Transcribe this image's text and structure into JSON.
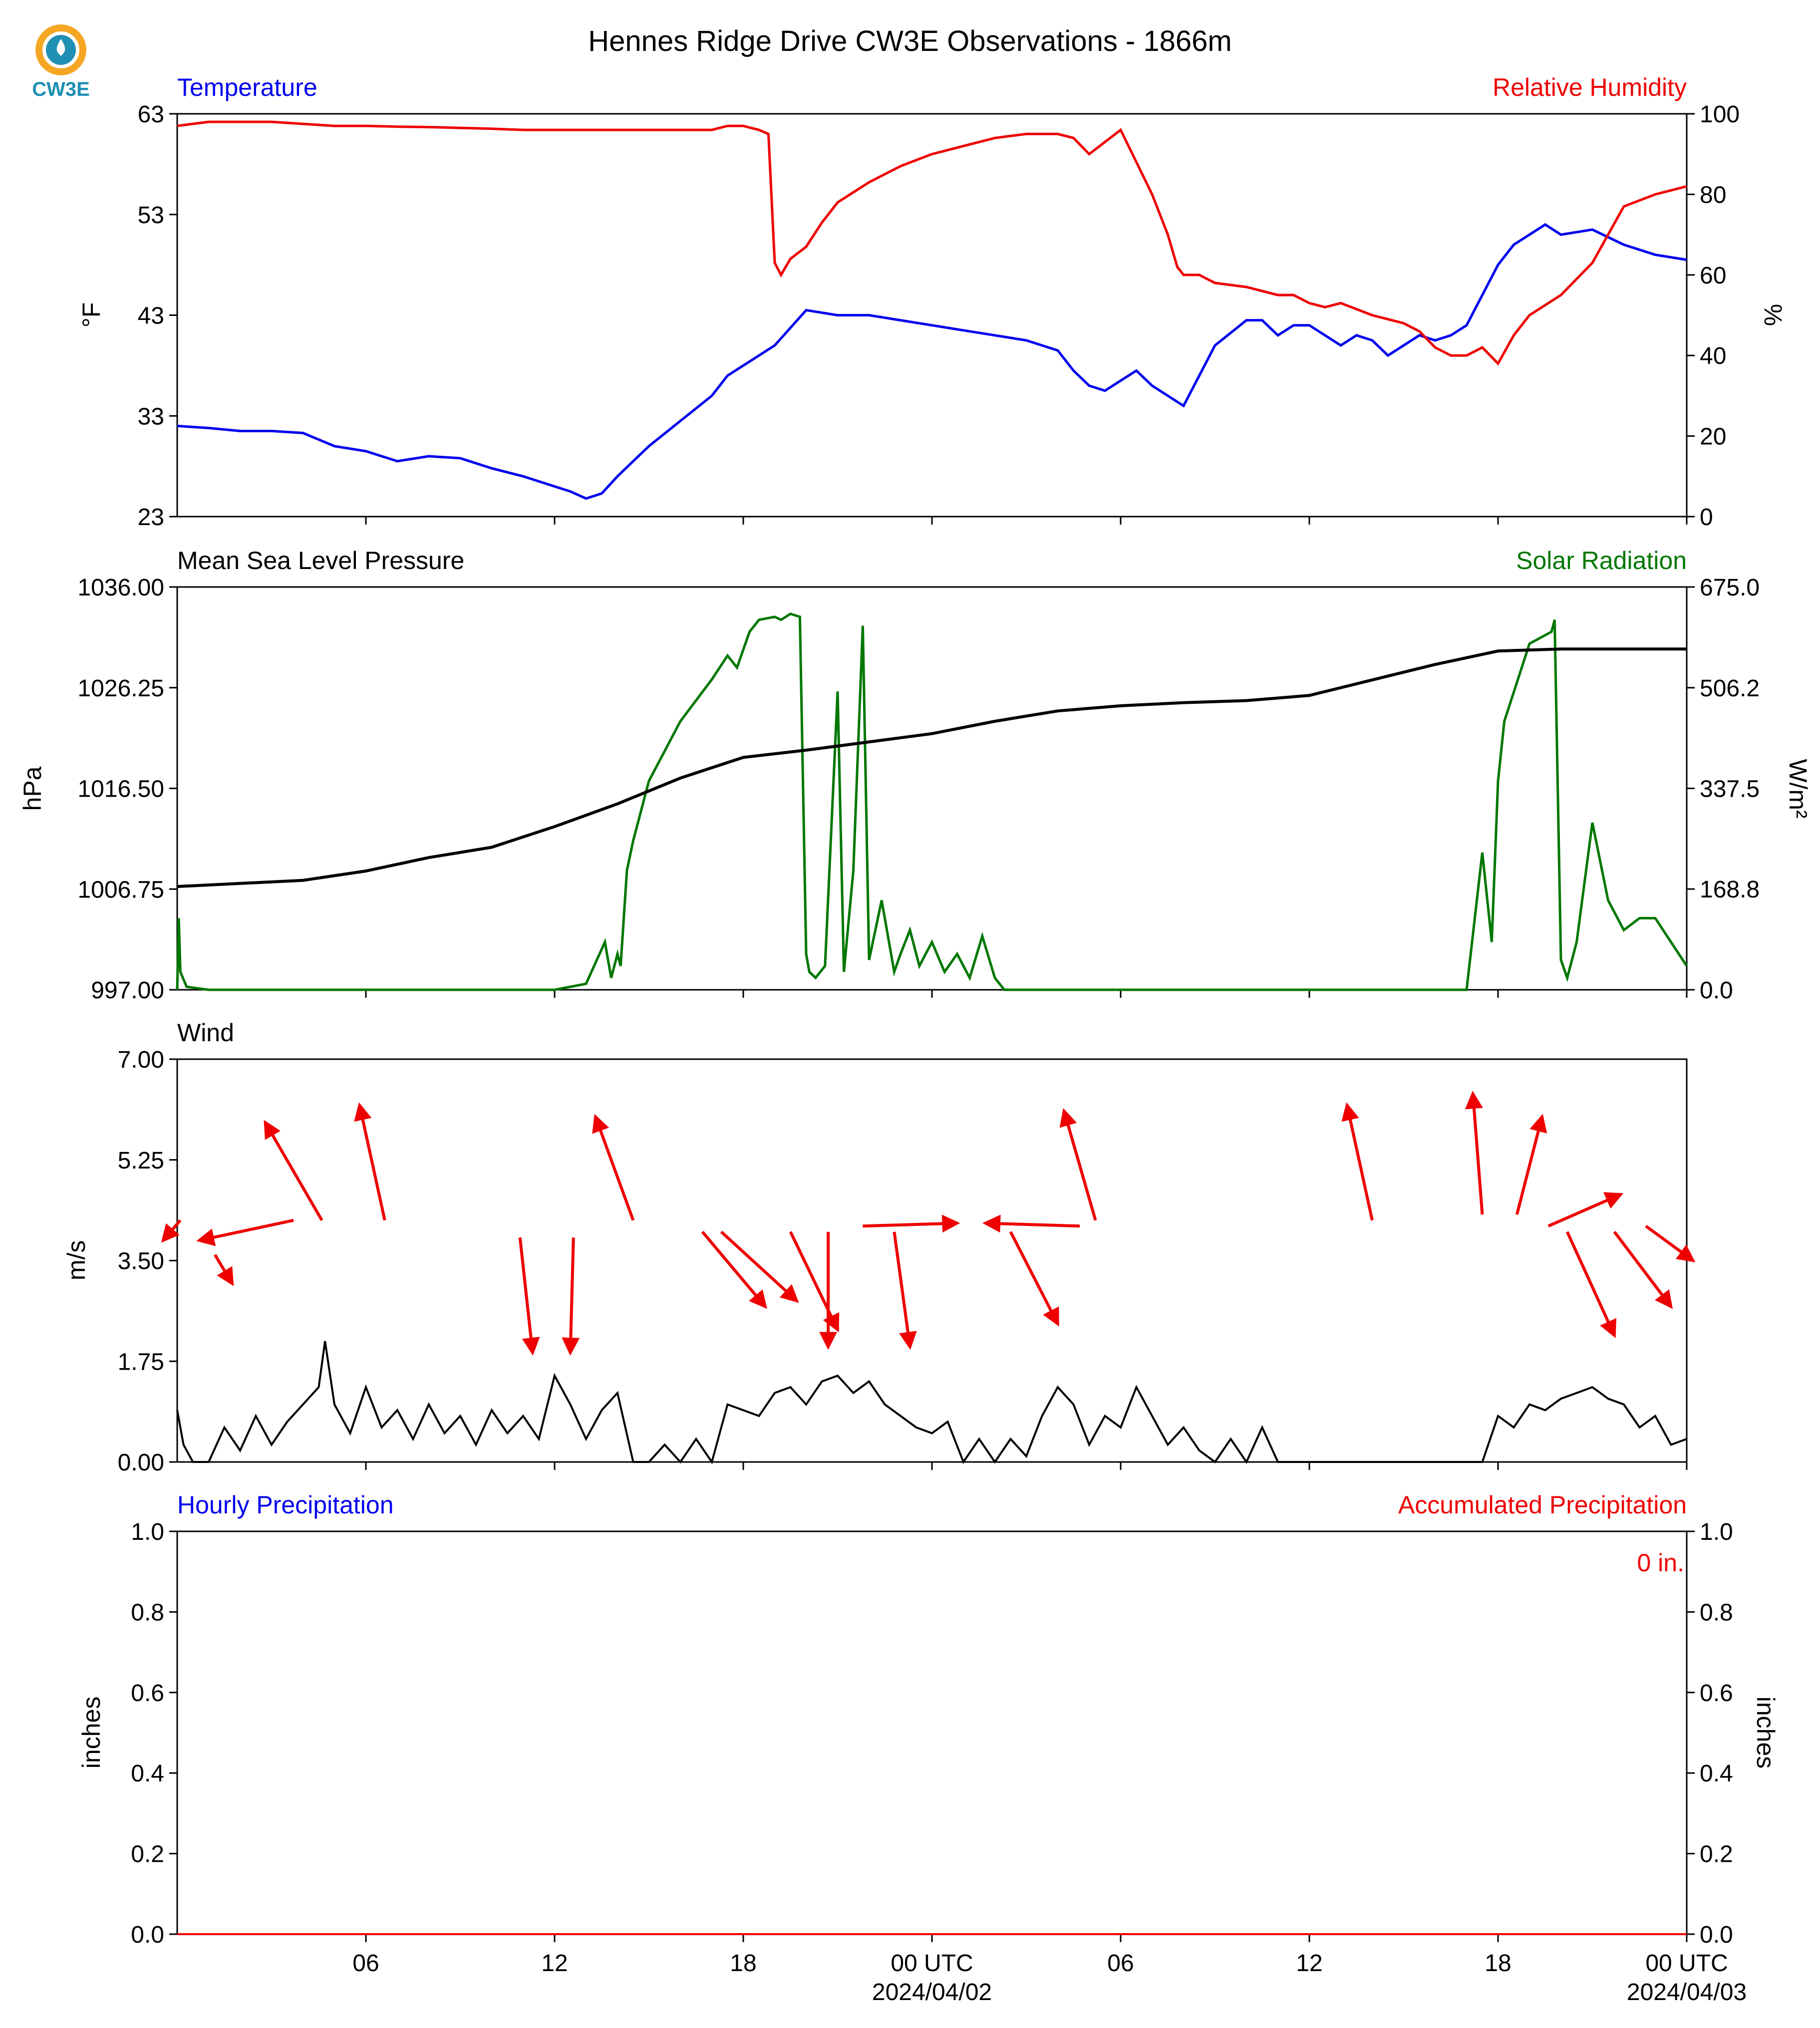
{
  "figure": {
    "title": "Hennes Ridge Drive CW3E Observations - 1866m",
    "logo_text": "CW3E",
    "x_axis": {
      "range_hours": [
        0,
        48
      ],
      "tick_hours": [
        6,
        12,
        18,
        24,
        30,
        36,
        42,
        48
      ],
      "tick_labels": [
        "06",
        "12",
        "18",
        "00 UTC",
        "06",
        "12",
        "18",
        "00 UTC"
      ],
      "date_labels": [
        {
          "hour": 24,
          "text": "2024/04/02"
        },
        {
          "hour": 48,
          "text": "2024/04/03"
        }
      ]
    }
  },
  "chart_data": [
    {
      "type": "line",
      "panel": "temperature-humidity",
      "left_title": "Temperature",
      "right_title": "Relative Humidity",
      "ylabel_left": "°F",
      "ylabel_right": "%",
      "ylim_left": [
        23,
        63
      ],
      "ylim_right": [
        0,
        100
      ],
      "yticks_left": [
        23,
        33,
        43,
        53,
        63
      ],
      "yticks_right": [
        0,
        20,
        40,
        60,
        80,
        100
      ],
      "series": [
        {
          "name": "Temperature",
          "axis": "left",
          "color": "#0000ee",
          "x": [
            0,
            1,
            2,
            3,
            4,
            5,
            6,
            7,
            8,
            9,
            10,
            11,
            11.5,
            12,
            12.5,
            13,
            13.5,
            14,
            14.5,
            15,
            16,
            17,
            17.5,
            18,
            19,
            20,
            21,
            22,
            23,
            24,
            25,
            26,
            27,
            28,
            28.5,
            29,
            29.5,
            30,
            30.5,
            31,
            31.5,
            32,
            33,
            34,
            34.5,
            35,
            35.5,
            36,
            37,
            37.5,
            38,
            38.5,
            39,
            39.5,
            40,
            40.5,
            41,
            42,
            42.5,
            43,
            43.5,
            44,
            45,
            46,
            47,
            48
          ],
          "y": [
            32,
            31.8,
            31.5,
            31.5,
            31.3,
            30,
            29.5,
            28.5,
            29,
            28.8,
            27.8,
            27,
            26.5,
            26,
            25.5,
            24.8,
            25.3,
            27,
            28.5,
            30,
            32.5,
            35,
            37,
            38,
            40,
            43.5,
            43,
            43,
            42.5,
            42,
            41.5,
            41,
            40.5,
            39.5,
            37.5,
            36,
            35.5,
            36.5,
            37.5,
            36,
            35,
            34,
            40,
            42.5,
            42.5,
            41,
            42,
            42,
            40,
            41,
            40.5,
            39,
            40,
            41,
            40.5,
            41,
            42,
            48,
            50,
            51,
            52,
            51,
            51.5,
            50,
            49,
            48.5
          ]
        },
        {
          "name": "Relative Humidity",
          "axis": "right",
          "color": "#ee0000",
          "x": [
            0,
            1,
            2,
            3,
            4,
            5,
            6,
            7,
            8,
            9,
            10,
            11,
            12,
            13,
            14,
            15,
            16,
            17,
            17.5,
            18,
            18.5,
            18.8,
            19,
            19.2,
            19.5,
            20,
            20.5,
            21,
            22,
            23,
            24,
            25,
            26,
            27,
            28,
            28.5,
            29,
            29.5,
            30,
            30.5,
            31,
            31.5,
            31.8,
            32,
            32.5,
            33,
            34,
            35,
            35.5,
            36,
            36.5,
            37,
            38,
            39,
            39.5,
            40,
            40.5,
            41,
            41.5,
            42,
            42.5,
            43,
            44,
            45,
            46,
            47,
            48
          ],
          "y": [
            97,
            98,
            98,
            98,
            97.5,
            97,
            97,
            96.8,
            96.7,
            96.5,
            96.3,
            96,
            96,
            96,
            96,
            96,
            96,
            96,
            97,
            97,
            96,
            95,
            63,
            60,
            64,
            67,
            73,
            78,
            83,
            87,
            90,
            92,
            94,
            95,
            95,
            94,
            90,
            93,
            96,
            88,
            80,
            70,
            62,
            60,
            60,
            58,
            57,
            55,
            55,
            53,
            52,
            53,
            50,
            48,
            46,
            42,
            40,
            40,
            42,
            38,
            45,
            50,
            55,
            63,
            77,
            80,
            82
          ]
        }
      ]
    },
    {
      "type": "line",
      "panel": "pressure-solar",
      "left_title": "Mean Sea Level Pressure",
      "right_title": "Solar Radiation",
      "ylabel_left": "hPa",
      "ylabel_right": "W/m²",
      "ylim_left": [
        997.0,
        1036.0
      ],
      "ylim_right": [
        0.0,
        675.0
      ],
      "yticks_left": [
        "997.00",
        "1006.75",
        "1016.50",
        "1026.25",
        "1036.00"
      ],
      "yticks_left_values": [
        997.0,
        1006.75,
        1016.5,
        1026.25,
        1036.0
      ],
      "yticks_right": [
        "0.0",
        "168.8",
        "337.5",
        "506.2",
        "675.0"
      ],
      "yticks_right_values": [
        0.0,
        168.8,
        337.5,
        506.2,
        675.0
      ],
      "series": [
        {
          "name": "Mean Sea Level Pressure",
          "axis": "left",
          "color": "#000000",
          "x": [
            0,
            2,
            4,
            6,
            8,
            10,
            12,
            14,
            16,
            18,
            20,
            22,
            24,
            26,
            28,
            30,
            32,
            34,
            36,
            38,
            40,
            42,
            44,
            46,
            48
          ],
          "y": [
            1007.0,
            1007.3,
            1007.6,
            1008.5,
            1009.8,
            1010.8,
            1012.8,
            1015.0,
            1017.5,
            1019.5,
            1020.2,
            1021.0,
            1021.8,
            1023.0,
            1024.0,
            1024.5,
            1024.8,
            1025.0,
            1025.5,
            1027.0,
            1028.5,
            1029.8,
            1030.0,
            1030.0,
            1030.0
          ]
        },
        {
          "name": "Solar Radiation",
          "axis": "right",
          "color": "#007700",
          "x": [
            0,
            0.05,
            0.1,
            0.3,
            1,
            12,
            13,
            13.6,
            13.8,
            14,
            14.1,
            14.3,
            14.5,
            15,
            16,
            17,
            17.5,
            17.8,
            18.2,
            18.5,
            19,
            19.2,
            19.5,
            19.8,
            20,
            20.1,
            20.3,
            20.6,
            21,
            21.2,
            21.5,
            21.8,
            22,
            22.4,
            22.8,
            23,
            23.3,
            23.6,
            24,
            24.4,
            24.8,
            25.2,
            25.6,
            26,
            26.3,
            40,
            41,
            41.5,
            41.8,
            42,
            42.2,
            43,
            43.7,
            43.8,
            44,
            44.2,
            44.5,
            45,
            45.5,
            46,
            46.5,
            47,
            47.5,
            48
          ],
          "y": [
            0,
            120,
            30,
            5,
            0,
            0,
            10,
            80,
            20,
            60,
            40,
            200,
            250,
            350,
            450,
            520,
            560,
            540,
            600,
            620,
            625,
            620,
            630,
            625,
            60,
            30,
            20,
            40,
            500,
            30,
            200,
            610,
            50,
            150,
            30,
            60,
            100,
            40,
            80,
            30,
            60,
            20,
            90,
            20,
            0,
            0,
            0,
            230,
            80,
            350,
            450,
            580,
            600,
            620,
            50,
            20,
            80,
            280,
            150,
            100,
            120,
            120,
            80,
            40
          ]
        }
      ]
    },
    {
      "type": "line",
      "panel": "wind",
      "left_title": "Wind",
      "ylabel_left": "m/s",
      "ylim_left": [
        0.0,
        7.0
      ],
      "yticks_left": [
        "0.00",
        "1.75",
        "3.50",
        "5.25",
        "7.00"
      ],
      "yticks_left_values": [
        0.0,
        1.75,
        3.5,
        5.25,
        7.0
      ],
      "series": [
        {
          "name": "Wind Speed",
          "axis": "left",
          "color": "#000000",
          "x": [
            0,
            0.2,
            0.5,
            1,
            1.5,
            2,
            2.5,
            3,
            3.5,
            4,
            4.5,
            4.7,
            5,
            5.5,
            6,
            6.5,
            7,
            7.5,
            8,
            8.5,
            9,
            9.5,
            10,
            10.5,
            11,
            11.5,
            12,
            12.5,
            13,
            13.5,
            14,
            14.5,
            15,
            15.5,
            16,
            16.5,
            17,
            17.5,
            18,
            18.5,
            19,
            19.5,
            20,
            20.5,
            21,
            21.5,
            22,
            22.5,
            23,
            23.5,
            24,
            24.5,
            25,
            25.5,
            26,
            26.5,
            27,
            27.5,
            28,
            28.5,
            29,
            29.5,
            30,
            30.5,
            31,
            31.5,
            32,
            32.5,
            33,
            33.5,
            34,
            34.5,
            35,
            35.5,
            36,
            36.5,
            37,
            37.5,
            38,
            38.5,
            39,
            39.5,
            40,
            40.5,
            41,
            41.5,
            42,
            42.5,
            43,
            43.5,
            44,
            44.5,
            45,
            45.5,
            46,
            46.5,
            47,
            47.5,
            48
          ],
          "y": [
            0.9,
            0.3,
            0,
            0,
            0.6,
            0.2,
            0.8,
            0.3,
            0.7,
            1.0,
            1.3,
            2.1,
            1.0,
            0.5,
            1.3,
            0.6,
            0.9,
            0.4,
            1.0,
            0.5,
            0.8,
            0.3,
            0.9,
            0.5,
            0.8,
            0.4,
            1.5,
            1.0,
            0.4,
            0.9,
            1.2,
            0,
            0,
            0.3,
            0,
            0.4,
            0,
            1.0,
            0.9,
            0.8,
            1.2,
            1.3,
            1.0,
            1.4,
            1.5,
            1.2,
            1.4,
            1.0,
            0.8,
            0.6,
            0.5,
            0.7,
            0,
            0.4,
            0,
            0.4,
            0.1,
            0.8,
            1.3,
            1.0,
            0.3,
            0.8,
            0.6,
            1.3,
            0.8,
            0.3,
            0.6,
            0.2,
            0,
            0.4,
            0,
            0.6,
            0,
            0,
            0,
            0,
            0,
            0,
            0,
            0,
            0,
            0,
            0,
            0,
            0,
            0,
            0.8,
            0.6,
            1.0,
            0.9,
            1.1,
            1.2,
            1.3,
            1.1,
            1.0,
            0.6,
            0.8,
            0.3,
            0.4
          ]
        },
        {
          "name": "Wind Direction",
          "axis": "left",
          "color": "#ee0000",
          "arrows": [
            {
              "x": 0.1,
              "y": 4.2,
              "dx": -0.55,
              "dy": -0.35
            },
            {
              "x": 1.2,
              "y": 3.6,
              "dx": 0.55,
              "dy": -0.5
            },
            {
              "x": 3.7,
              "y": 4.2,
              "dx": -3.0,
              "dy": -0.35
            },
            {
              "x": 4.6,
              "y": 4.2,
              "dx": -1.8,
              "dy": 1.7
            },
            {
              "x": 6.6,
              "y": 4.2,
              "dx": -0.8,
              "dy": 2.0
            },
            {
              "x": 10.9,
              "y": 3.9,
              "dx": 0.4,
              "dy": -2.0
            },
            {
              "x": 12.6,
              "y": 3.9,
              "dx": -0.1,
              "dy": -2.0
            },
            {
              "x": 14.5,
              "y": 4.2,
              "dx": -1.2,
              "dy": 1.8
            },
            {
              "x": 16.7,
              "y": 4.0,
              "dx": 2.0,
              "dy": -1.3
            },
            {
              "x": 17.3,
              "y": 4.0,
              "dx": 2.4,
              "dy": -1.2
            },
            {
              "x": 19.5,
              "y": 4.0,
              "dx": 1.5,
              "dy": -1.7
            },
            {
              "x": 20.7,
              "y": 4.0,
              "dx": 0,
              "dy": -2.0
            },
            {
              "x": 21.8,
              "y": 4.1,
              "dx": 3.0,
              "dy": 0.05
            },
            {
              "x": 22.8,
              "y": 4.0,
              "dx": 0.5,
              "dy": -2.0
            },
            {
              "x": 26.5,
              "y": 4.0,
              "dx": 1.5,
              "dy": -1.6
            },
            {
              "x": 28.7,
              "y": 4.1,
              "dx": -3.0,
              "dy": 0.05
            },
            {
              "x": 29.2,
              "y": 4.2,
              "dx": -1.0,
              "dy": 1.9
            },
            {
              "x": 38.0,
              "y": 4.2,
              "dx": -0.8,
              "dy": 2.0
            },
            {
              "x": 41.5,
              "y": 4.3,
              "dx": -0.3,
              "dy": 2.1
            },
            {
              "x": 42.6,
              "y": 4.3,
              "dx": 0.8,
              "dy": 1.7
            },
            {
              "x": 43.6,
              "y": 4.1,
              "dx": 2.3,
              "dy": 0.55
            },
            {
              "x": 44.2,
              "y": 4.0,
              "dx": 1.5,
              "dy": -1.8
            },
            {
              "x": 45.7,
              "y": 4.0,
              "dx": 1.8,
              "dy": -1.3
            },
            {
              "x": 46.7,
              "y": 4.1,
              "dx": 1.5,
              "dy": -0.6
            }
          ]
        }
      ]
    },
    {
      "type": "line",
      "panel": "precipitation",
      "left_title": "Hourly Precipitation",
      "right_title": "Accumulated Precipitation",
      "annotation": "0 in.",
      "ylabel_left": "inches",
      "ylabel_right": "inches",
      "ylim_left": [
        0.0,
        1.0
      ],
      "ylim_right": [
        0.0,
        1.0
      ],
      "yticks_left": [
        "0.0",
        "0.2",
        "0.4",
        "0.6",
        "0.8",
        "1.0"
      ],
      "yticks_left_values": [
        0.0,
        0.2,
        0.4,
        0.6,
        0.8,
        1.0
      ],
      "yticks_right": [
        "0.0",
        "0.2",
        "0.4",
        "0.6",
        "0.8",
        "1.0"
      ],
      "yticks_right_values": [
        0.0,
        0.2,
        0.4,
        0.6,
        0.8,
        1.0
      ],
      "series": [
        {
          "name": "Hourly Precipitation",
          "axis": "left",
          "color": "#0000ee",
          "x": [
            0,
            48
          ],
          "y": [
            0,
            0
          ]
        },
        {
          "name": "Accumulated Precipitation",
          "axis": "right",
          "color": "#ee0000",
          "x": [
            0,
            48
          ],
          "y": [
            0,
            0
          ]
        }
      ]
    }
  ],
  "colors": {
    "temperature": "#0000ee",
    "humidity": "#ee0000",
    "pressure": "#000000",
    "solar": "#007700",
    "wind_speed": "#000000",
    "wind_arrow": "#ee0000",
    "logo_ring": "#f5a623",
    "logo_drop": "#1f8fb3"
  }
}
